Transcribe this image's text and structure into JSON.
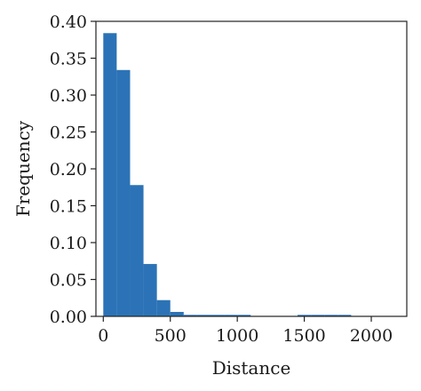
{
  "chart_data": {
    "type": "bar",
    "title": "",
    "xlabel": "Distance",
    "ylabel": "Frequency",
    "xlim": [
      -55,
      2265
    ],
    "ylim": [
      0,
      0.4
    ],
    "xticks": [
      0,
      500,
      1000,
      1500,
      2000
    ],
    "xtick_labels": [
      "0",
      "500",
      "1000",
      "1500",
      "2000"
    ],
    "yticks": [
      0.0,
      0.05,
      0.1,
      0.15,
      0.2,
      0.25,
      0.3,
      0.35,
      0.4
    ],
    "ytick_labels": [
      "0.00",
      "0.05",
      "0.10",
      "0.15",
      "0.20",
      "0.25",
      "0.30",
      "0.35",
      "0.40"
    ],
    "bar_color": "#2b73b6",
    "grid": false,
    "bins": [
      {
        "start": 0,
        "end": 100,
        "value": 0.384
      },
      {
        "start": 100,
        "end": 200,
        "value": 0.334
      },
      {
        "start": 200,
        "end": 300,
        "value": 0.178
      },
      {
        "start": 300,
        "end": 400,
        "value": 0.071
      },
      {
        "start": 400,
        "end": 500,
        "value": 0.022
      },
      {
        "start": 500,
        "end": 600,
        "value": 0.006
      },
      {
        "start": 600,
        "end": 700,
        "value": 0.002
      },
      {
        "start": 700,
        "end": 800,
        "value": 0.002
      },
      {
        "start": 800,
        "end": 900,
        "value": 0.002
      },
      {
        "start": 900,
        "end": 1000,
        "value": 0.002
      },
      {
        "start": 1000,
        "end": 1100,
        "value": 0.002
      },
      {
        "start": 1450,
        "end": 1550,
        "value": 0.002
      },
      {
        "start": 1550,
        "end": 1650,
        "value": 0.002
      },
      {
        "start": 1650,
        "end": 1750,
        "value": 0.002
      },
      {
        "start": 1750,
        "end": 1850,
        "value": 0.002
      }
    ]
  }
}
